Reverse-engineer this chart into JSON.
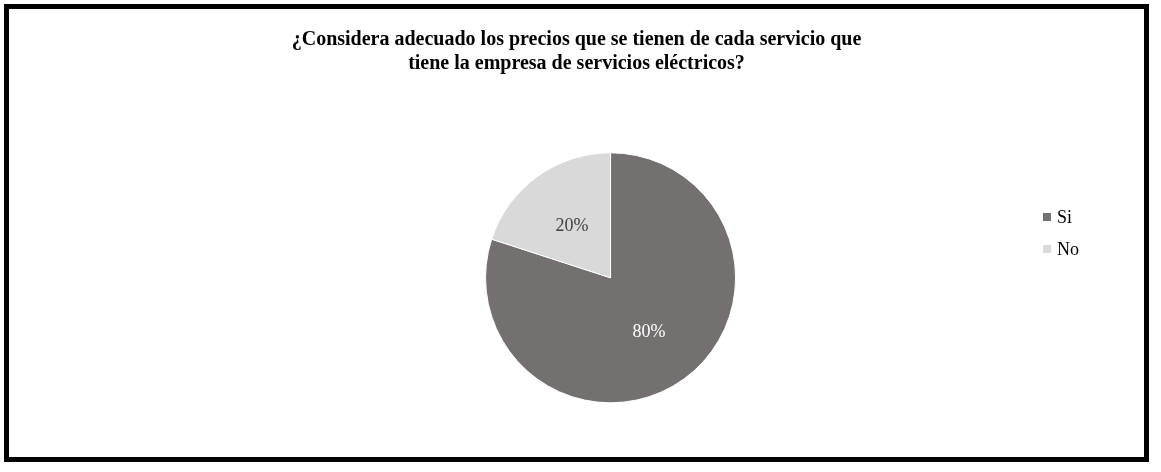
{
  "chart_data": {
    "type": "pie",
    "title": "¿Considera adecuado los precios que se tienen de cada servicio que\ntiene la empresa de servicios eléctricos?",
    "categories": [
      "Si",
      "No"
    ],
    "values": [
      80,
      20
    ],
    "colors": [
      "#747070",
      "#d9d9d9"
    ],
    "value_labels": [
      "80%",
      "20%"
    ],
    "legend": "right"
  }
}
